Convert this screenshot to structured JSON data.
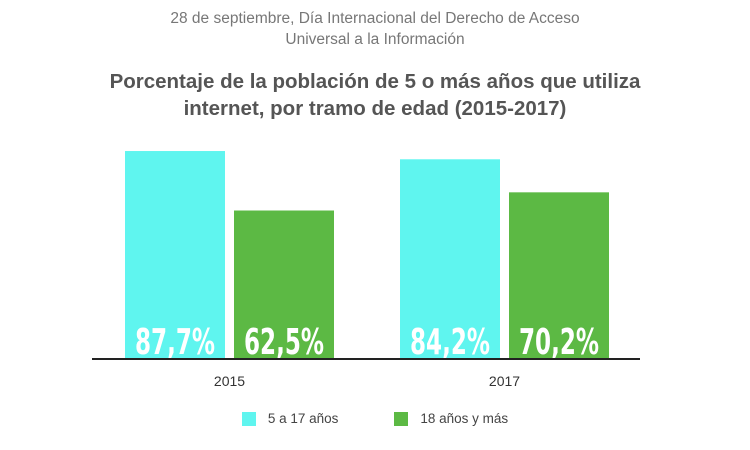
{
  "header": {
    "subtitle_line1": "28 de septiembre, Día Internacional del Derecho de Acceso",
    "subtitle_line2": "Universal a la Información",
    "title_line1": "Porcentaje de la población de 5 o más años que utiliza",
    "title_line2": "internet, por tramo de edad (2015-2017)"
  },
  "chart_data": {
    "type": "bar",
    "title": "Porcentaje de la población de 5 o más años que utiliza internet, por tramo de edad (2015-2017)",
    "categories": [
      "2015",
      "2017"
    ],
    "series": [
      {
        "name": "5 a 17 años",
        "values": [
          87.7,
          84.2
        ],
        "labels": [
          "87,7%",
          "84,2%"
        ],
        "color": "#5ff5ef"
      },
      {
        "name": "18 años y más",
        "values": [
          62.5,
          70.2
        ],
        "labels": [
          "62,5%",
          "70,2%"
        ],
        "color": "#5cb944"
      }
    ],
    "ylim": [
      0,
      100
    ],
    "grid": false,
    "legend_position": "bottom",
    "axis_color": "#222222",
    "label_color": "#ffffff"
  }
}
